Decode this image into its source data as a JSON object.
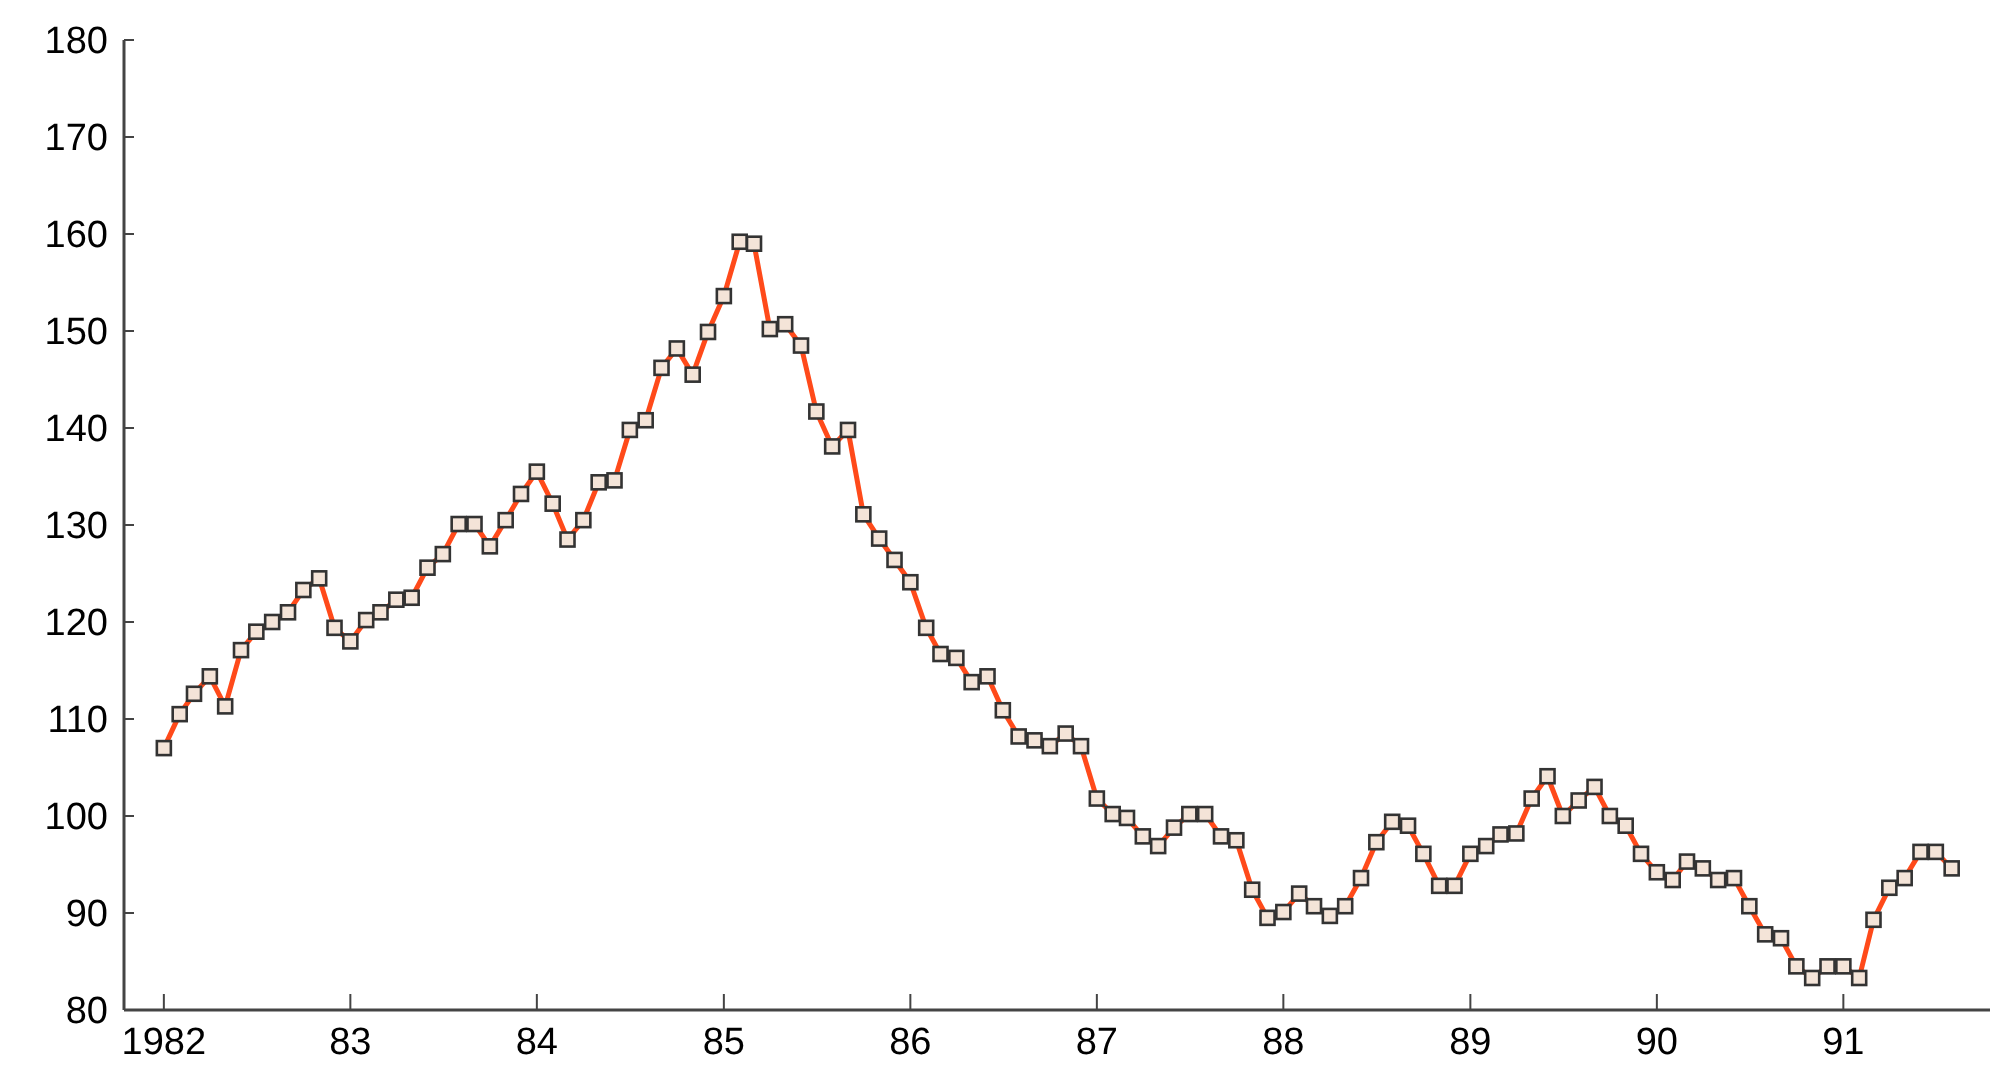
{
  "chart_data": {
    "type": "line",
    "x": [
      "1982-01",
      "1982-02",
      "1982-03",
      "1982-04",
      "1982-05",
      "1982-06",
      "1982-07",
      "1982-08",
      "1982-09",
      "1982-10",
      "1982-11",
      "1982-12",
      "1983-01",
      "1983-02",
      "1983-03",
      "1983-04",
      "1983-05",
      "1983-06",
      "1983-07",
      "1983-08",
      "1983-09",
      "1983-10",
      "1983-11",
      "1983-12",
      "1984-01",
      "1984-02",
      "1984-03",
      "1984-04",
      "1984-05",
      "1984-06",
      "1984-07",
      "1984-08",
      "1984-09",
      "1984-10",
      "1984-11",
      "1984-12",
      "1985-01",
      "1985-02",
      "1985-03",
      "1985-04",
      "1985-05",
      "1985-06",
      "1985-07",
      "1985-08",
      "1985-09",
      "1985-10",
      "1985-11",
      "1985-12",
      "1986-01",
      "1986-02",
      "1986-03",
      "1986-04",
      "1986-05",
      "1986-06",
      "1986-07",
      "1986-08",
      "1986-09",
      "1986-10",
      "1986-11",
      "1986-12",
      "1987-01",
      "1987-02",
      "1987-03",
      "1987-04",
      "1987-05",
      "1987-06",
      "1987-07",
      "1987-08",
      "1987-09",
      "1987-10",
      "1987-11",
      "1987-12",
      "1988-01",
      "1988-02",
      "1988-03",
      "1988-04",
      "1988-05",
      "1988-06",
      "1988-07",
      "1988-08",
      "1988-09",
      "1988-10",
      "1988-11",
      "1988-12",
      "1989-01",
      "1989-02",
      "1989-03",
      "1989-04",
      "1989-05",
      "1989-06",
      "1989-07",
      "1989-08",
      "1989-09",
      "1989-10",
      "1989-11",
      "1989-12",
      "1990-01",
      "1990-02",
      "1990-03",
      "1990-04",
      "1990-05",
      "1990-06",
      "1990-07",
      "1990-08",
      "1990-09",
      "1990-10",
      "1990-11",
      "1990-12",
      "1991-01",
      "1991-02",
      "1991-03",
      "1991-04",
      "1991-05",
      "1991-06",
      "1991-07",
      "1991-08"
    ],
    "series": [
      {
        "color": "#ff4a1a",
        "values": [
          107,
          110.5,
          112.6,
          114.4,
          111.3,
          117.1,
          119,
          120,
          121,
          123.3,
          124.5,
          119.4,
          118,
          120.2,
          121,
          122.3,
          122.5,
          125.6,
          127,
          130.1,
          130.1,
          127.8,
          130.5,
          133.2,
          135.5,
          132.2,
          128.5,
          130.5,
          134.4,
          134.6,
          139.8,
          140.8,
          146.2,
          148.2,
          145.5,
          149.9,
          153.6,
          159.2,
          159,
          150.2,
          150.7,
          148.5,
          141.7,
          138.1,
          139.8,
          131.1,
          128.6,
          126.4,
          124.1,
          119.4,
          116.7,
          116.3,
          113.8,
          114.4,
          110.9,
          108.2,
          107.8,
          107.2,
          108.5,
          107.2,
          101.8,
          100.2,
          99.8,
          97.9,
          96.9,
          98.8,
          100.2,
          100.2,
          97.9,
          97.5,
          92.4,
          89.5,
          90.1,
          92,
          90.7,
          89.7,
          90.7,
          93.6,
          97.3,
          99.4,
          99,
          96.1,
          92.8,
          92.8,
          96.1,
          96.9,
          98.1,
          98.2,
          101.8,
          104.1,
          100,
          101.6,
          103,
          100,
          99,
          96.1,
          94.2,
          93.4,
          95.3,
          94.6,
          93.4,
          93.6,
          90.7,
          87.8,
          87.4,
          84.5,
          83.3,
          84.5,
          84.5,
          83.3,
          89.3,
          92.6,
          93.6,
          96.3,
          96.3,
          94.6
        ]
      }
    ],
    "xlim": [
      "1981-10-15",
      "1991-10-15"
    ],
    "xticks": [
      {
        "value": "1982-01",
        "label": "1982"
      },
      {
        "value": "1983-01",
        "label": "83"
      },
      {
        "value": "1984-01",
        "label": "84"
      },
      {
        "value": "1985-01",
        "label": "85"
      },
      {
        "value": "1986-01",
        "label": "86"
      },
      {
        "value": "1987-01",
        "label": "87"
      },
      {
        "value": "1988-01",
        "label": "88"
      },
      {
        "value": "1989-01",
        "label": "89"
      },
      {
        "value": "1990-01",
        "label": "90"
      },
      {
        "value": "1991-01",
        "label": "91"
      }
    ],
    "ylim": [
      80,
      180
    ],
    "yticks": [
      80,
      90,
      100,
      110,
      120,
      130,
      140,
      150,
      160,
      170,
      180
    ],
    "grid": false,
    "marker": "square",
    "line_style": "solid"
  }
}
